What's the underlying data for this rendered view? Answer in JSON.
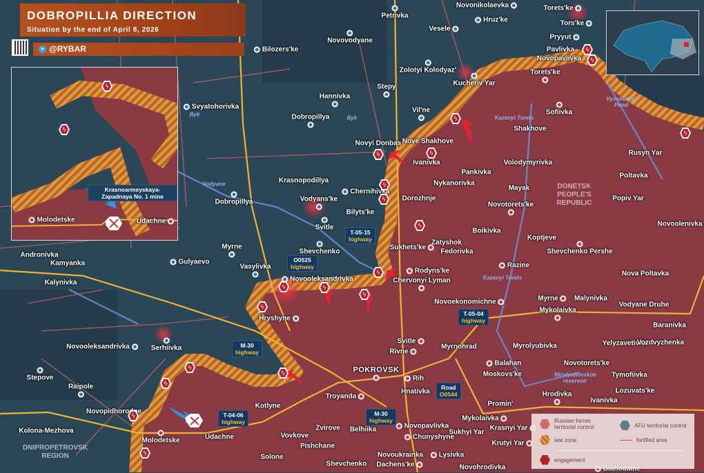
{
  "header": {
    "title": "DOBROPILLIA DIRECTION",
    "subtitle": "Situation by the end of April 8, 2026",
    "channel": "@RYBAR",
    "telegram_icon": "telegram-icon",
    "qr_icon": "qr-code"
  },
  "colors": {
    "russian_control": "#8a3a43",
    "afu_control": "#2b4656",
    "war_zone": "#e49a3a",
    "engagement": "#b5202b",
    "fortified": "#e0636c",
    "highway": "#f2b233",
    "header": "#b6511e"
  },
  "towns_ua": [
    "Petrivka",
    "Novonikolaevka",
    "Vesele",
    "Hruz'ke",
    "Torets'ke",
    "Tors'ke",
    "Pryyut",
    "Novovodyane",
    "Bilozers'ke",
    "Zolotyi Kolodyaz'",
    "Kucheriv Yar",
    "Stepy",
    "Vil'ne",
    "Hannivka",
    "Svyatohorivka",
    "Dobropillya",
    "Krasnopodillya",
    "Dobropillya",
    "Chernihivka",
    "Vodyans'ke",
    "Svitle",
    "Shevchenko",
    "Myrne",
    "Gulyaevo",
    "Vasylivka",
    "Novooleksandrivka",
    "Hryshyne",
    "Serhiivka",
    "Novooleksandrivka",
    "Stepove",
    "Raipole",
    "Kolona-Mezhova",
    "Novopidhorodne",
    "Andronivka",
    "Kamyanka",
    "Kalynivka",
    "Novyi Donbas",
    "Nove Shakhove"
  ],
  "towns_ru": [
    "Pavlivka",
    "Novopavlivka",
    "Torets'ke",
    "Sofiivka",
    "Shakhove",
    "Ivanivka",
    "Pankivka",
    "Volodymyrivka",
    "Nykanorivka",
    "Mayak",
    "Dorozhnje",
    "Novotorets'ke",
    "Bilyts'ke",
    "Boikivka",
    "Koptjeve",
    "Sukhets'ke",
    "Zatyshok",
    "Fedorivka",
    "Shevchenko Pershe",
    "Rodyns'ke",
    "Chervonyi Lyman",
    "Razine",
    "Nova Poltavka",
    "Novoekonomichne",
    "Myrne",
    "Malynivka",
    "Vodyane Druhe",
    "Mykolaivka",
    "Baranivka",
    "Myrolyubivka",
    "Yelyzavetivka",
    "Vozdvyzhenka",
    "Svitle",
    "Rivne",
    "Myrnohrad",
    "Balahan",
    "Moskovs'ke",
    "Novotorets'ke",
    "Tymofiivka",
    "Lozuvats'ke",
    "Hrodivka",
    "Ivanivka",
    "Promin'",
    "Rih",
    "Hnativka",
    "POKROVSK",
    "Troyanda",
    "Kotlyne",
    "Udachne",
    "Molodetske",
    "Vovkove",
    "Zvirove",
    "Belhiika",
    "Novopavlivka",
    "Chunyshyne",
    "Pishchane",
    "Novoukrainka",
    "Solone",
    "Shevchenko",
    "Dachens'ke",
    "Lysivka",
    "Mykolaivka",
    "Krasnyi Yar",
    "Sukhyi Yar",
    "Krutyi Yar",
    "Novohrodivka",
    "Blahodatne",
    "Rusyn Yar",
    "Poltavka",
    "Popiv Yar",
    "Novoolenivka"
  ],
  "regions": [
    "DONETSK PEOPLE'S REPUBLIC",
    "DNIPROPETROVSK REGION"
  ],
  "water": [
    "Byk",
    "Byk",
    "Vodyane",
    "Kazenyi Torets",
    "Vynokurnyi Pond",
    "Kazenyi Torets",
    "Mirolyubovskoe reservoir"
  ],
  "highways": [
    {
      "name": "O0525",
      "kind": "highway"
    },
    {
      "name": "T-05-15",
      "kind": "highway"
    },
    {
      "name": "M-30",
      "kind": "highway"
    },
    {
      "name": "T-04-06",
      "kind": "highway"
    },
    {
      "name": "T-05-04",
      "kind": "highway"
    },
    {
      "name": "Road",
      "kind": "O0544"
    },
    {
      "name": "M-30",
      "kind": "highway"
    }
  ],
  "inset": {
    "mine_label": "Krasnoarmeyskaya-Zapadnaya No. 1 mine",
    "towns": [
      "Molodetske",
      "Udachne"
    ]
  },
  "legend": {
    "russian": "Russian forces territorial control",
    "afu": "AFU territorial control",
    "war_zone": "war zone",
    "fortified": "fortified area",
    "engagement": "engagement"
  }
}
